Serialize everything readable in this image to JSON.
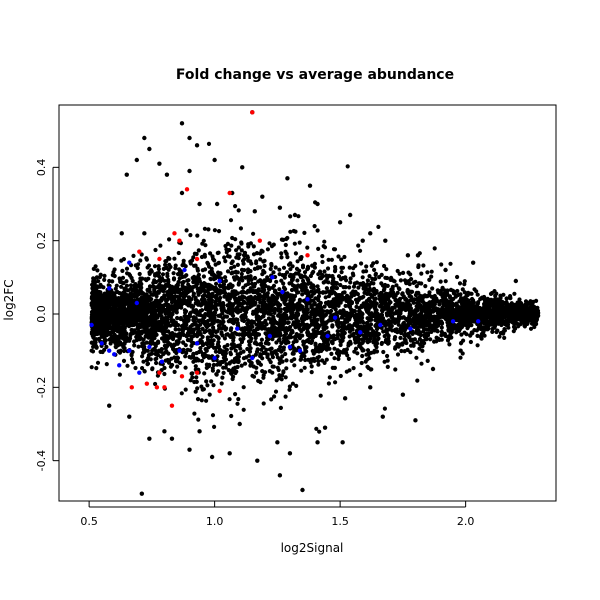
{
  "chart_data": {
    "type": "scatter",
    "title": "Fold change vs average abundance",
    "xlabel": "log2Signal",
    "ylabel": "log2FC",
    "xlim": [
      0.38,
      2.36
    ],
    "ylim": [
      -0.51,
      0.57
    ],
    "x_ticks": [
      0.5,
      1.0,
      1.5,
      2.0
    ],
    "x_tick_labels": [
      "0.5",
      "1.0",
      "1.5",
      "2.0"
    ],
    "y_ticks": [
      -0.4,
      -0.2,
      0.0,
      0.2,
      0.4
    ],
    "y_tick_labels": [
      "-0.4",
      "-0.2",
      "0.0",
      "0.2",
      "0.4"
    ],
    "grid": false,
    "legend": "none",
    "colors": {
      "points": "#000000",
      "blue_points": "#0000ff",
      "red_points": "#ff0000"
    },
    "series": [
      {
        "color": "#000000",
        "points": [
          [
            1.15,
            0.55
          ],
          [
            0.87,
            0.52
          ],
          [
            0.72,
            0.48
          ],
          [
            0.9,
            0.48
          ],
          [
            0.93,
            0.46
          ],
          [
            0.74,
            0.45
          ],
          [
            0.69,
            0.42
          ],
          [
            0.78,
            0.41
          ],
          [
            1.0,
            0.42
          ],
          [
            0.9,
            0.39
          ],
          [
            0.81,
            0.38
          ],
          [
            1.11,
            0.4
          ],
          [
            0.65,
            0.38
          ],
          [
            1.38,
            0.35
          ],
          [
            0.87,
            0.33
          ],
          [
            1.07,
            0.33
          ],
          [
            1.29,
            0.37
          ],
          [
            1.19,
            0.32
          ],
          [
            0.63,
            0.22
          ],
          [
            0.72,
            0.22
          ],
          [
            0.94,
            0.3
          ],
          [
            1.01,
            0.3
          ],
          [
            1.16,
            0.28
          ],
          [
            1.26,
            0.29
          ],
          [
            1.32,
            0.27
          ],
          [
            1.41,
            0.3
          ],
          [
            1.54,
            0.27
          ],
          [
            1.5,
            0.25
          ],
          [
            1.62,
            0.22
          ],
          [
            1.59,
            0.2
          ],
          [
            1.68,
            0.2
          ],
          [
            1.77,
            0.16
          ],
          [
            1.81,
            0.16
          ],
          [
            1.92,
            0.12
          ],
          [
            2.03,
            0.14
          ],
          [
            2.2,
            0.09
          ],
          [
            2.27,
            0.0
          ],
          [
            2.24,
            -0.01
          ],
          [
            2.16,
            0.03
          ],
          [
            2.07,
            -0.05
          ],
          [
            1.98,
            -0.1
          ],
          [
            1.87,
            -0.15
          ],
          [
            1.75,
            -0.22
          ],
          [
            1.67,
            -0.28
          ],
          [
            1.62,
            -0.2
          ],
          [
            1.52,
            -0.23
          ],
          [
            1.44,
            -0.31
          ],
          [
            1.41,
            -0.35
          ],
          [
            1.3,
            -0.38
          ],
          [
            1.35,
            -0.48
          ],
          [
            1.26,
            -0.44
          ],
          [
            1.17,
            -0.4
          ],
          [
            1.06,
            -0.38
          ],
          [
            0.99,
            -0.39
          ],
          [
            0.9,
            -0.37
          ],
          [
            0.83,
            -0.34
          ],
          [
            0.74,
            -0.34
          ],
          [
            0.66,
            -0.28
          ],
          [
            0.58,
            -0.25
          ],
          [
            0.71,
            -0.49
          ],
          [
            1.8,
            -0.29
          ],
          [
            1.51,
            -0.35
          ],
          [
            1.25,
            -0.35
          ],
          [
            1.1,
            -0.3
          ],
          [
            0.94,
            -0.32
          ],
          [
            0.8,
            -0.32
          ]
        ]
      },
      {
        "color": "#0000ff",
        "points": [
          [
            0.66,
            0.14
          ],
          [
            0.58,
            0.07
          ],
          [
            0.69,
            0.03
          ],
          [
            0.88,
            0.12
          ],
          [
            1.02,
            0.09
          ],
          [
            1.23,
            0.1
          ],
          [
            1.37,
            0.04
          ],
          [
            1.27,
            0.06
          ],
          [
            1.48,
            -0.01
          ],
          [
            0.51,
            -0.03
          ],
          [
            0.55,
            -0.08
          ],
          [
            0.58,
            -0.1
          ],
          [
            0.6,
            -0.11
          ],
          [
            0.66,
            -0.1
          ],
          [
            0.74,
            -0.09
          ],
          [
            0.86,
            -0.1
          ],
          [
            1.0,
            -0.12
          ],
          [
            1.15,
            -0.12
          ],
          [
            1.3,
            -0.09
          ],
          [
            1.34,
            -0.1
          ],
          [
            1.45,
            -0.06
          ],
          [
            1.58,
            -0.05
          ],
          [
            1.66,
            -0.03
          ],
          [
            1.78,
            -0.04
          ],
          [
            1.95,
            -0.02
          ],
          [
            2.05,
            -0.02
          ],
          [
            0.62,
            -0.14
          ],
          [
            0.7,
            -0.16
          ],
          [
            0.79,
            -0.13
          ],
          [
            0.93,
            -0.08
          ],
          [
            1.09,
            -0.04
          ],
          [
            1.22,
            -0.06
          ]
        ]
      },
      {
        "color": "#ff0000",
        "points": [
          [
            1.15,
            0.55
          ],
          [
            0.89,
            0.34
          ],
          [
            1.06,
            0.33
          ],
          [
            0.84,
            0.22
          ],
          [
            0.86,
            0.2
          ],
          [
            0.7,
            0.17
          ],
          [
            0.78,
            0.15
          ],
          [
            0.93,
            0.15
          ],
          [
            1.18,
            0.2
          ],
          [
            1.37,
            0.16
          ],
          [
            0.73,
            -0.19
          ],
          [
            0.77,
            -0.2
          ],
          [
            0.8,
            -0.2
          ],
          [
            0.83,
            -0.25
          ],
          [
            0.87,
            -0.17
          ],
          [
            0.93,
            -0.16
          ],
          [
            1.02,
            -0.21
          ],
          [
            0.67,
            -0.2
          ],
          [
            0.78,
            -0.16
          ]
        ]
      }
    ]
  }
}
